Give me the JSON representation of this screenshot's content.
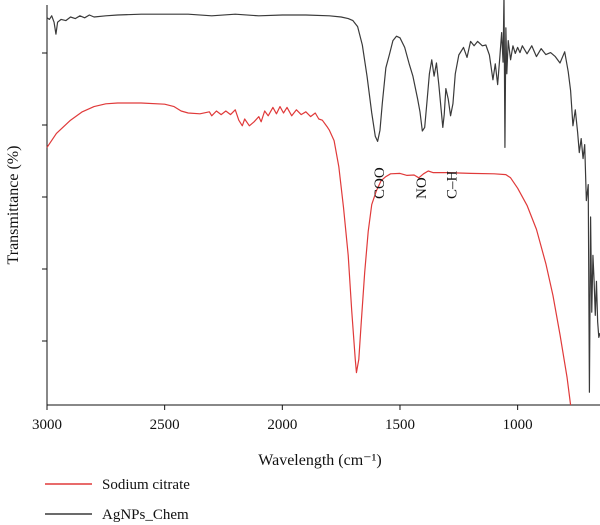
{
  "chart_data": {
    "type": "line",
    "title": "",
    "xlabel": "Wavelength (cm⁻¹)",
    "ylabel": "Transmittance (%)",
    "xlim": [
      3000,
      650
    ],
    "x_reversed": true,
    "ylim": [
      0,
      100
    ],
    "y_tick_labels": false,
    "grid": false,
    "x_ticks": [
      3000,
      2500,
      2000,
      1500,
      1000
    ],
    "y_ticks": [
      16,
      34,
      52,
      70,
      88
    ],
    "legend_position": "bottom-left",
    "annotations": [
      {
        "text": "COO",
        "x": 1590,
        "y": 64
      },
      {
        "text": "NO",
        "x": 1410,
        "y": 64
      },
      {
        "text": "C–H",
        "x": 1280,
        "y": 64
      }
    ],
    "series": [
      {
        "name": "Sodium citrate",
        "color": "#e03a3a",
        "points": [
          [
            3000,
            64.4
          ],
          [
            2960,
            67.9
          ],
          [
            2900,
            71.2
          ],
          [
            2850,
            73.3
          ],
          [
            2800,
            74.6
          ],
          [
            2750,
            75.3
          ],
          [
            2700,
            75.5
          ],
          [
            2600,
            75.5
          ],
          [
            2500,
            75.2
          ],
          [
            2460,
            74.6
          ],
          [
            2430,
            73.5
          ],
          [
            2400,
            73.0
          ],
          [
            2350,
            72.8
          ],
          [
            2310,
            73.3
          ],
          [
            2300,
            72.3
          ],
          [
            2280,
            73.5
          ],
          [
            2260,
            72.6
          ],
          [
            2240,
            73.5
          ],
          [
            2220,
            72.6
          ],
          [
            2200,
            73.8
          ],
          [
            2185,
            71.2
          ],
          [
            2170,
            69.8
          ],
          [
            2160,
            71.5
          ],
          [
            2140,
            69.8
          ],
          [
            2120,
            70.8
          ],
          [
            2100,
            72.1
          ],
          [
            2090,
            70.8
          ],
          [
            2075,
            73.5
          ],
          [
            2060,
            72.3
          ],
          [
            2040,
            74.4
          ],
          [
            2025,
            72.8
          ],
          [
            2010,
            74.6
          ],
          [
            1995,
            73.0
          ],
          [
            1980,
            74.4
          ],
          [
            1960,
            72.3
          ],
          [
            1940,
            73.8
          ],
          [
            1920,
            72.6
          ],
          [
            1900,
            73.3
          ],
          [
            1880,
            72.1
          ],
          [
            1860,
            73.0
          ],
          [
            1845,
            71.5
          ],
          [
            1830,
            71.2
          ],
          [
            1810,
            69.6
          ],
          [
            1800,
            68.7
          ],
          [
            1780,
            66.1
          ],
          [
            1760,
            59.6
          ],
          [
            1740,
            49.4
          ],
          [
            1720,
            37.4
          ],
          [
            1705,
            23.5
          ],
          [
            1690,
            11.4
          ],
          [
            1685,
            8.1
          ],
          [
            1675,
            11.4
          ],
          [
            1665,
            20.3
          ],
          [
            1650,
            33.1
          ],
          [
            1635,
            43.4
          ],
          [
            1620,
            50.1
          ],
          [
            1600,
            53.6
          ],
          [
            1580,
            56.1
          ],
          [
            1560,
            57.1
          ],
          [
            1540,
            57.8
          ],
          [
            1500,
            57.9
          ],
          [
            1470,
            57.4
          ],
          [
            1440,
            57.5
          ],
          [
            1420,
            56.8
          ],
          [
            1400,
            57.8
          ],
          [
            1380,
            58.5
          ],
          [
            1360,
            58.1
          ],
          [
            1330,
            58.1
          ],
          [
            1300,
            58.1
          ],
          [
            1200,
            57.9
          ],
          [
            1100,
            57.8
          ],
          [
            1050,
            57.6
          ],
          [
            1030,
            56.8
          ],
          [
            1000,
            54.2
          ],
          [
            960,
            49.9
          ],
          [
            920,
            43.9
          ],
          [
            880,
            35.3
          ],
          [
            850,
            27.4
          ],
          [
            820,
            17.6
          ],
          [
            790,
            6.9
          ],
          [
            775,
            0
          ]
        ]
      },
      {
        "name": "AgNPs_Chem",
        "color": "#3a3a3a",
        "points": [
          [
            3000,
            96.8
          ],
          [
            2990,
            96.4
          ],
          [
            2980,
            97.3
          ],
          [
            2970,
            95.7
          ],
          [
            2962,
            92.7
          ],
          [
            2955,
            95.7
          ],
          [
            2940,
            96.4
          ],
          [
            2920,
            96.1
          ],
          [
            2900,
            97.0
          ],
          [
            2880,
            96.6
          ],
          [
            2860,
            97.3
          ],
          [
            2840,
            96.8
          ],
          [
            2820,
            97.5
          ],
          [
            2800,
            97.0
          ],
          [
            2750,
            97.3
          ],
          [
            2700,
            97.5
          ],
          [
            2600,
            97.7
          ],
          [
            2500,
            97.7
          ],
          [
            2400,
            97.7
          ],
          [
            2300,
            97.3
          ],
          [
            2200,
            97.7
          ],
          [
            2100,
            97.3
          ],
          [
            2000,
            97.5
          ],
          [
            1900,
            97.5
          ],
          [
            1800,
            97.3
          ],
          [
            1750,
            97.0
          ],
          [
            1720,
            96.6
          ],
          [
            1700,
            96.1
          ],
          [
            1680,
            94.6
          ],
          [
            1660,
            90.0
          ],
          [
            1640,
            82.2
          ],
          [
            1620,
            73.0
          ],
          [
            1605,
            67.2
          ],
          [
            1595,
            65.9
          ],
          [
            1585,
            68.7
          ],
          [
            1575,
            75.5
          ],
          [
            1560,
            84.3
          ],
          [
            1545,
            87.6
          ],
          [
            1530,
            91.1
          ],
          [
            1515,
            92.2
          ],
          [
            1500,
            91.8
          ],
          [
            1480,
            89.4
          ],
          [
            1460,
            85.1
          ],
          [
            1445,
            82.2
          ],
          [
            1425,
            76.5
          ],
          [
            1415,
            73.3
          ],
          [
            1405,
            68.5
          ],
          [
            1395,
            69.4
          ],
          [
            1385,
            76.0
          ],
          [
            1375,
            82.8
          ],
          [
            1365,
            86.3
          ],
          [
            1355,
            82.2
          ],
          [
            1345,
            85.5
          ],
          [
            1335,
            80.1
          ],
          [
            1325,
            73.8
          ],
          [
            1318,
            69.4
          ],
          [
            1312,
            72.6
          ],
          [
            1305,
            79.1
          ],
          [
            1295,
            76.5
          ],
          [
            1285,
            72.3
          ],
          [
            1275,
            75.3
          ],
          [
            1265,
            82.8
          ],
          [
            1250,
            87.5
          ],
          [
            1230,
            89.4
          ],
          [
            1215,
            86.9
          ],
          [
            1200,
            90.9
          ],
          [
            1185,
            89.8
          ],
          [
            1170,
            90.9
          ],
          [
            1150,
            89.8
          ],
          [
            1135,
            90.0
          ],
          [
            1120,
            87.5
          ],
          [
            1105,
            81.3
          ],
          [
            1095,
            85.3
          ],
          [
            1085,
            80.1
          ],
          [
            1075,
            87.5
          ],
          [
            1068,
            93.1
          ],
          [
            1062,
            85.7
          ],
          [
            1058,
            102.6
          ],
          [
            1054,
            64.4
          ],
          [
            1050,
            94.3
          ],
          [
            1046,
            82.8
          ],
          [
            1040,
            91.1
          ],
          [
            1030,
            86.3
          ],
          [
            1020,
            89.8
          ],
          [
            1010,
            87.9
          ],
          [
            1000,
            89.4
          ],
          [
            990,
            88.1
          ],
          [
            980,
            89.8
          ],
          [
            960,
            87.8
          ],
          [
            940,
            89.8
          ],
          [
            920,
            87.1
          ],
          [
            900,
            89.1
          ],
          [
            880,
            87.6
          ],
          [
            860,
            88.1
          ],
          [
            840,
            87.1
          ],
          [
            820,
            85.5
          ],
          [
            800,
            88.3
          ],
          [
            785,
            83.3
          ],
          [
            775,
            78.6
          ],
          [
            765,
            69.8
          ],
          [
            755,
            73.8
          ],
          [
            745,
            68.1
          ],
          [
            738,
            63.1
          ],
          [
            730,
            66.6
          ],
          [
            722,
            61.6
          ],
          [
            715,
            65.1
          ],
          [
            708,
            51.1
          ],
          [
            700,
            55.1
          ],
          [
            695,
            3.2
          ],
          [
            690,
            47.0
          ],
          [
            685,
            23.2
          ],
          [
            680,
            37.4
          ],
          [
            675,
            30.9
          ],
          [
            670,
            22.4
          ],
          [
            665,
            30.9
          ],
          [
            660,
            20.8
          ],
          [
            655,
            16.9
          ],
          [
            650,
            18.0
          ]
        ]
      }
    ]
  }
}
